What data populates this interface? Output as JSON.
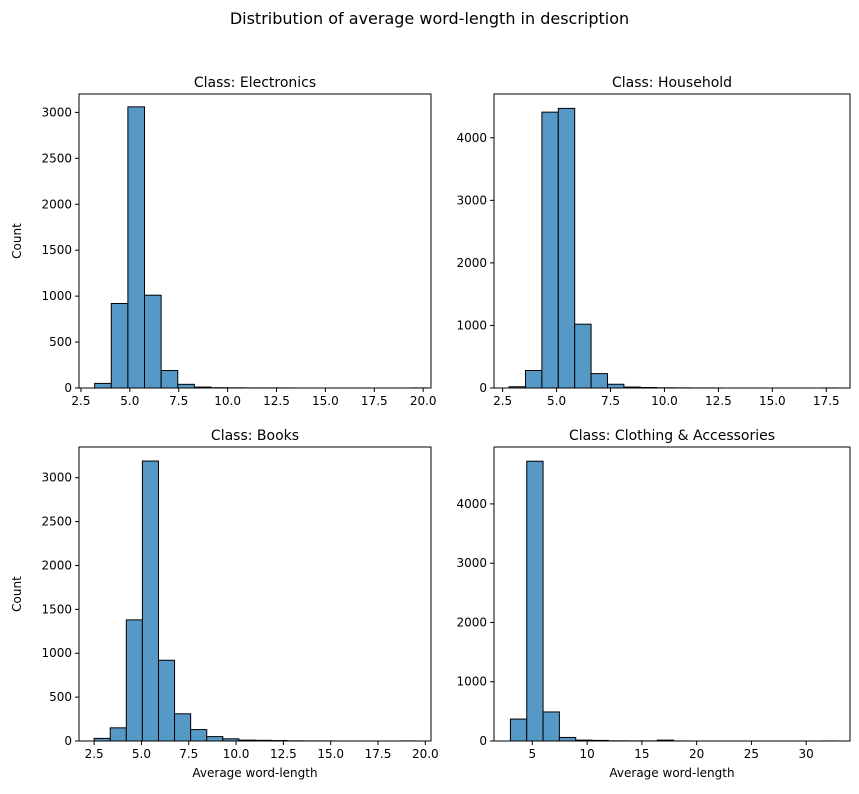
{
  "figure": {
    "title": "Distribution of average word-length in description"
  },
  "colors": {
    "bar_fill": "#5799c6",
    "bar_edge": "#000000"
  },
  "chart_data": [
    {
      "type": "bar",
      "title": "Class: Electronics",
      "xlabel": "",
      "ylabel": "Count",
      "xlim": [
        2.4,
        20.4
      ],
      "ylim": [
        0,
        3200
      ],
      "xticks": [
        2.5,
        5.0,
        7.5,
        10.0,
        12.5,
        15.0,
        17.5,
        20.0
      ],
      "xtick_labels": [
        "2.5",
        "5.0",
        "7.5",
        "10.0",
        "12.5",
        "15.0",
        "17.5",
        "20.0"
      ],
      "yticks": [
        0,
        500,
        1000,
        1500,
        2000,
        2500,
        3000
      ],
      "ytick_labels": [
        "0",
        "500",
        "1000",
        "1500",
        "2000",
        "2500",
        "3000"
      ],
      "bin_edges": [
        3.2,
        4.05,
        4.9,
        5.75,
        6.6,
        7.45,
        8.3,
        9.15,
        10.0,
        10.85,
        11.7,
        12.55,
        13.4,
        14.25,
        15.1,
        15.95,
        16.8,
        17.65,
        18.5,
        19.35,
        20.2
      ],
      "counts": [
        50,
        920,
        3060,
        1010,
        190,
        40,
        10,
        3,
        2,
        1,
        1,
        1,
        0,
        0,
        0,
        0,
        0,
        0,
        0,
        1
      ],
      "grid": false
    },
    {
      "type": "bar",
      "title": "Class: Household",
      "xlabel": "",
      "ylabel": "",
      "xlim": [
        2.1,
        18.6
      ],
      "ylim": [
        0,
        4700
      ],
      "xticks": [
        2.5,
        5.0,
        7.5,
        10.0,
        12.5,
        15.0,
        17.5
      ],
      "xtick_labels": [
        "2.5",
        "5.0",
        "7.5",
        "10.0",
        "12.5",
        "15.0",
        "17.5"
      ],
      "yticks": [
        0,
        1000,
        2000,
        3000,
        4000
      ],
      "ytick_labels": [
        "0",
        "1000",
        "2000",
        "3000",
        "4000"
      ],
      "bin_edges": [
        2.8,
        3.56,
        4.32,
        5.08,
        5.84,
        6.6,
        7.36,
        8.12,
        8.88,
        9.64,
        10.4,
        11.16,
        11.92,
        12.68,
        13.44,
        14.2,
        14.96,
        15.72,
        16.48,
        17.24,
        18.0
      ],
      "counts": [
        20,
        280,
        4410,
        4470,
        1020,
        230,
        60,
        15,
        8,
        3,
        2,
        1,
        1,
        0,
        0,
        0,
        0,
        0,
        0,
        1
      ],
      "grid": false
    },
    {
      "type": "bar",
      "title": "Class: Books",
      "xlabel": "Average word-length",
      "ylabel": "Count",
      "xlim": [
        1.7,
        20.3
      ],
      "ylim": [
        0,
        3350
      ],
      "xticks": [
        2.5,
        5.0,
        7.5,
        10.0,
        12.5,
        15.0,
        17.5,
        20.0
      ],
      "xtick_labels": [
        "2.5",
        "5.0",
        "7.5",
        "10.0",
        "12.5",
        "15.0",
        "17.5",
        "20.0"
      ],
      "yticks": [
        0,
        500,
        1000,
        1500,
        2000,
        2500,
        3000
      ],
      "ytick_labels": [
        "0",
        "500",
        "1000",
        "1500",
        "2000",
        "2500",
        "3000"
      ],
      "bin_edges": [
        2.5,
        3.35,
        4.2,
        5.05,
        5.9,
        6.75,
        7.6,
        8.45,
        9.3,
        10.15,
        11.0,
        11.85,
        12.7,
        13.55,
        14.4,
        15.25,
        16.1,
        16.95,
        17.8,
        18.65,
        19.5
      ],
      "counts": [
        30,
        150,
        1380,
        3190,
        920,
        310,
        130,
        50,
        25,
        10,
        8,
        5,
        2,
        1,
        1,
        0,
        0,
        0,
        0,
        1
      ],
      "grid": false
    },
    {
      "type": "bar",
      "title": "Class: Clothing & Accessories",
      "xlabel": "Average word-length",
      "ylabel": "",
      "xlim": [
        1.5,
        34.0
      ],
      "ylim": [
        0,
        4960
      ],
      "xticks": [
        5,
        10,
        15,
        20,
        25,
        30
      ],
      "xtick_labels": [
        "5",
        "10",
        "15",
        "20",
        "25",
        "30"
      ],
      "yticks": [
        0,
        1000,
        2000,
        3000,
        4000
      ],
      "ytick_labels": [
        "0",
        "1000",
        "2000",
        "3000",
        "4000"
      ],
      "bin_edges": [
        3.0,
        4.49,
        5.98,
        7.47,
        8.96,
        10.45,
        11.94,
        13.43,
        14.92,
        16.41,
        17.9,
        19.39,
        20.88,
        22.37,
        23.86,
        25.35,
        26.84,
        28.33,
        29.82,
        31.31,
        32.8
      ],
      "counts": [
        370,
        4720,
        490,
        60,
        15,
        10,
        3,
        2,
        2,
        15,
        1,
        0,
        0,
        0,
        0,
        0,
        0,
        0,
        0,
        1
      ],
      "grid": false
    }
  ]
}
